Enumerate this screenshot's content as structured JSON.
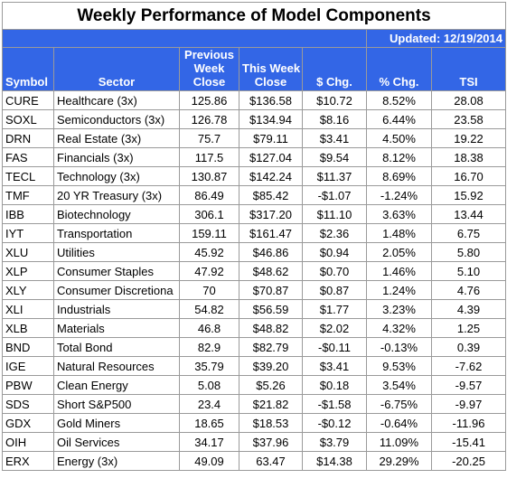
{
  "title": "Weekly Performance of Model Components",
  "updated": "Updated:  12/19/2014",
  "headers": {
    "symbol": "Symbol",
    "sector": "Sector",
    "prev_line1": "Previous",
    "prev_line2": "Week",
    "prev_line3": "Close",
    "this_line1": "This Week",
    "this_line2": "Close",
    "chg": "$ Chg.",
    "pct": "% Chg.",
    "tsi": "TSI"
  },
  "colors": {
    "header_bg": "#3366e6",
    "negative": "#b00000"
  },
  "rows": [
    {
      "symbol": "CURE",
      "sector": "Healthcare  (3x)",
      "prev": "125.86",
      "this": "$136.58",
      "chg": "$10.72",
      "pct": "8.52%",
      "tsi": "28.08"
    },
    {
      "symbol": "SOXL",
      "sector": "Semiconductors  (3x)",
      "prev": "126.78",
      "this": "$134.94",
      "chg": "$8.16",
      "pct": "6.44%",
      "tsi": "23.58"
    },
    {
      "symbol": "DRN",
      "sector": "Real Estate  (3x)",
      "prev": "75.7",
      "this": "$79.11",
      "chg": "$3.41",
      "pct": "4.50%",
      "tsi": "19.22"
    },
    {
      "symbol": "FAS",
      "sector": "Financials  (3x)",
      "prev": "117.5",
      "this": "$127.04",
      "chg": "$9.54",
      "pct": "8.12%",
      "tsi": "18.38"
    },
    {
      "symbol": "TECL",
      "sector": "Technology  (3x)",
      "prev": "130.87",
      "this": "$142.24",
      "chg": "$11.37",
      "pct": "8.69%",
      "tsi": "16.70"
    },
    {
      "symbol": "TMF",
      "sector": "20 YR Treasury  (3x)",
      "prev": "86.49",
      "this": "$85.42",
      "chg": "-$1.07",
      "pct": "-1.24%",
      "tsi": "15.92"
    },
    {
      "symbol": "IBB",
      "sector": "Biotechnology",
      "prev": "306.1",
      "this": "$317.20",
      "chg": "$11.10",
      "pct": "3.63%",
      "tsi": "13.44"
    },
    {
      "symbol": "IYT",
      "sector": "Transportation",
      "prev": "159.11",
      "this": "$161.47",
      "chg": "$2.36",
      "pct": "1.48%",
      "tsi": "6.75"
    },
    {
      "symbol": "XLU",
      "sector": "Utilities",
      "prev": "45.92",
      "this": "$46.86",
      "chg": "$0.94",
      "pct": "2.05%",
      "tsi": "5.80"
    },
    {
      "symbol": "XLP",
      "sector": "Consumer Staples",
      "prev": "47.92",
      "this": "$48.62",
      "chg": "$0.70",
      "pct": "1.46%",
      "tsi": "5.10"
    },
    {
      "symbol": "XLY",
      "sector": "Consumer Discretiona",
      "prev": "70",
      "this": "$70.87",
      "chg": "$0.87",
      "pct": "1.24%",
      "tsi": "4.76"
    },
    {
      "symbol": "XLI",
      "sector": "Industrials",
      "prev": "54.82",
      "this": "$56.59",
      "chg": "$1.77",
      "pct": "3.23%",
      "tsi": "4.39"
    },
    {
      "symbol": "XLB",
      "sector": "Materials",
      "prev": "46.8",
      "this": "$48.82",
      "chg": "$2.02",
      "pct": "4.32%",
      "tsi": "1.25"
    },
    {
      "symbol": "BND",
      "sector": "Total Bond",
      "prev": "82.9",
      "this": "$82.79",
      "chg": "-$0.11",
      "pct": "-0.13%",
      "tsi": "0.39"
    },
    {
      "symbol": "IGE",
      "sector": "Natural Resources",
      "prev": "35.79",
      "this": "$39.20",
      "chg": "$3.41",
      "pct": "9.53%",
      "tsi": "-7.62"
    },
    {
      "symbol": "PBW",
      "sector": "Clean Energy",
      "prev": "5.08",
      "this": "$5.26",
      "chg": "$0.18",
      "pct": "3.54%",
      "tsi": "-9.57"
    },
    {
      "symbol": "SDS",
      "sector": "Short S&P500",
      "prev": "23.4",
      "this": "$21.82",
      "chg": "-$1.58",
      "pct": "-6.75%",
      "tsi": "-9.97"
    },
    {
      "symbol": "GDX",
      "sector": "Gold Miners",
      "prev": "18.65",
      "this": "$18.53",
      "chg": "-$0.12",
      "pct": "-0.64%",
      "tsi": "-11.96"
    },
    {
      "symbol": "OIH",
      "sector": "Oil Services",
      "prev": "34.17",
      "this": "$37.96",
      "chg": "$3.79",
      "pct": "11.09%",
      "tsi": "-15.41"
    },
    {
      "symbol": "ERX",
      "sector": "Energy  (3x)",
      "prev": "49.09",
      "this": "63.47",
      "chg": "$14.38",
      "pct": "29.29%",
      "tsi": "-20.25"
    }
  ]
}
